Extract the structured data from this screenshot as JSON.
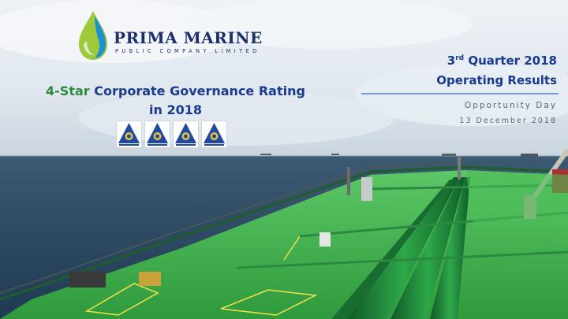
{
  "logo": {
    "name": "PRIMA MARINE",
    "subtitle": "PUBLIC COMPANY LIMITED"
  },
  "governance": {
    "star_label": "4-Star",
    "title_rest": " Corporate Governance Rating",
    "year_line": "in 2018",
    "badge_icons": [
      "cg-award-icon",
      "cg-award-icon",
      "cg-award-icon",
      "cg-award-icon"
    ]
  },
  "report": {
    "quarter_number": "3",
    "quarter_suffix": "rd",
    "quarter_rest": " Quarter 2018",
    "subtitle": "Operating Results",
    "event": "Opportunity Day",
    "date": "13 December 2018"
  },
  "colors": {
    "title_blue": "#1a3a8c",
    "star_green": "#2a8a3c",
    "deck_green": "#3db34a"
  }
}
